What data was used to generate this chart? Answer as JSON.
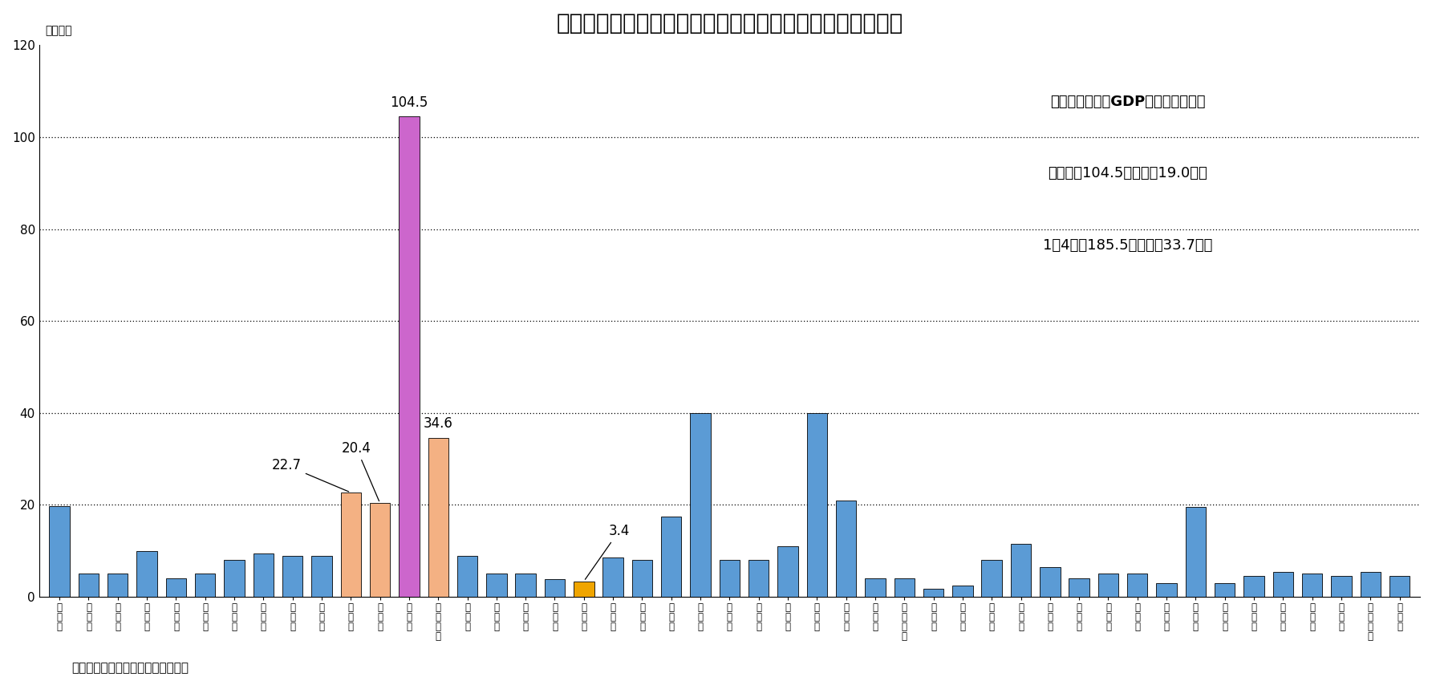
{
  "title": "［図表２］　東京都および近接する四県の「県内総生産」",
  "ylabel": "（兆円）",
  "source": "（資料）　内閣府『国民経済計算』",
  "ylim": [
    0,
    120
  ],
  "yticks": [
    0,
    20,
    40,
    60,
    80,
    100,
    120
  ],
  "categories_raw": [
    "北海道",
    "青森県",
    "岩手県",
    "宮城県",
    "秋田県",
    "山形県",
    "福島県",
    "茨城県",
    "栃木県",
    "群馬県",
    "埼玉県",
    "千葉県",
    "東京都",
    "神奈川県",
    "新潟県",
    "富山県",
    "石川県",
    "福井県",
    "山梨県",
    "長野県",
    "岐阜県",
    "静岡県",
    "愛知県",
    "三重県",
    "滋賀県",
    "京都府",
    "大阪府",
    "兵庫県",
    "奈良県",
    "和歌山県",
    "鳥取県",
    "島根県",
    "岡山県",
    "広島県",
    "山口県",
    "徳島県",
    "香川県",
    "愛媛県",
    "高知県",
    "福岡県",
    "佐賀県",
    "長崎県",
    "熊本県",
    "大分県",
    "宮崎県",
    "鹿児島県",
    "沖縄県"
  ],
  "values": [
    19.8,
    5.0,
    5.0,
    10.0,
    4.0,
    5.0,
    8.0,
    9.5,
    9.0,
    9.0,
    22.7,
    20.4,
    104.5,
    34.6,
    9.0,
    5.0,
    5.0,
    3.8,
    3.4,
    8.5,
    8.0,
    17.5,
    40.0,
    8.0,
    8.0,
    11.0,
    40.0,
    21.0,
    4.0,
    4.0,
    1.8,
    2.5,
    8.0,
    11.5,
    6.5,
    4.0,
    5.0,
    5.0,
    3.0,
    19.5,
    3.0,
    4.5,
    5.5,
    5.0,
    4.5,
    5.5,
    4.5
  ],
  "bar_colors": [
    "#5b9bd5",
    "#5b9bd5",
    "#5b9bd5",
    "#5b9bd5",
    "#5b9bd5",
    "#5b9bd5",
    "#5b9bd5",
    "#5b9bd5",
    "#5b9bd5",
    "#5b9bd5",
    "#f4b183",
    "#f4b183",
    "#cc66cc",
    "#f4b183",
    "#5b9bd5",
    "#5b9bd5",
    "#5b9bd5",
    "#5b9bd5",
    "#f0a500",
    "#5b9bd5",
    "#5b9bd5",
    "#5b9bd5",
    "#5b9bd5",
    "#5b9bd5",
    "#5b9bd5",
    "#5b9bd5",
    "#5b9bd5",
    "#5b9bd5",
    "#5b9bd5",
    "#5b9bd5",
    "#5b9bd5",
    "#5b9bd5",
    "#5b9bd5",
    "#5b9bd5",
    "#5b9bd5",
    "#5b9bd5",
    "#5b9bd5",
    "#5b9bd5",
    "#5b9bd5",
    "#5b9bd5",
    "#5b9bd5",
    "#5b9bd5",
    "#5b9bd5",
    "#5b9bd5",
    "#5b9bd5",
    "#5b9bd5",
    "#5b9bd5"
  ],
  "legend_title": "「県内総生産がGDPに占める割合」",
  "legend_title_brackets": "【県内総生産がGDPに占める割合】",
  "legend_line1": "東京都：104.5兆円　（19.0％）",
  "legend_line2": "1都4県：185.5兆円　（33.7％）",
  "background_color": "#ffffff",
  "title_fontsize": 20,
  "label_fontsize": 8.5,
  "annotation_fontsize": 12
}
